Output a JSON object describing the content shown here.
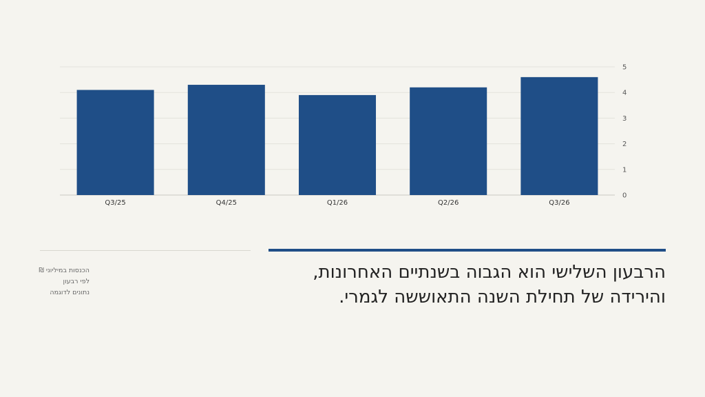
{
  "chart_data": {
    "type": "bar",
    "categories": [
      "Q3/25",
      "Q4/25",
      "Q1/26",
      "Q2/26",
      "Q3/26"
    ],
    "values": [
      4.1,
      4.3,
      3.9,
      4.2,
      4.6
    ],
    "title": "",
    "xlabel": "",
    "ylabel": "",
    "ylim": [
      0,
      5
    ],
    "yticks": [
      0,
      1,
      2,
      3,
      4,
      5
    ],
    "y_axis_side": "right",
    "grid": true,
    "bar_color": "#1f4e87"
  },
  "notes": {
    "line1": "הכנסות במיליוני ₪",
    "line2": "לפי רבעון",
    "line3": "נתונים לדוגמה"
  },
  "headline": "הרבעון השלישי הוא הגבוה בשנתיים האחרונות, והירידה של תחילת השנה התאוששה לגמרי.",
  "colors": {
    "accent": "#1f4e87",
    "background": "#f5f4ef"
  }
}
